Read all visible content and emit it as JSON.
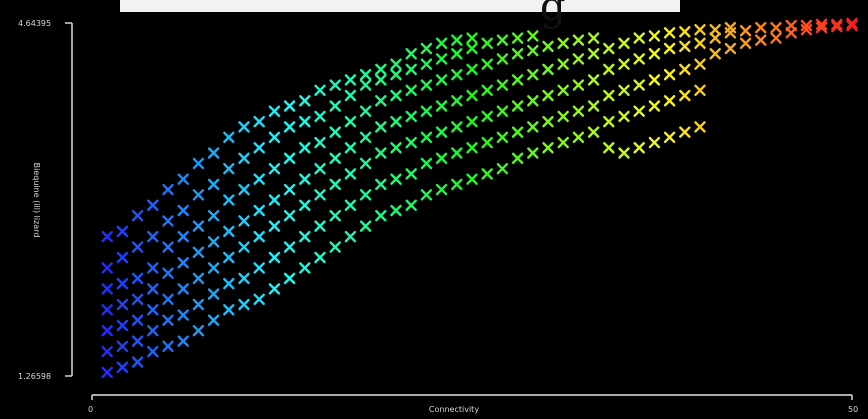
{
  "chart_data": {
    "type": "scatter",
    "title": "",
    "xlabel": "Connectivity",
    "ylabel": "Biequine (ill) lizard",
    "x_ticks": [
      "0",
      "50"
    ],
    "y_ticks": [
      "4.64395",
      "1.26598"
    ],
    "xlim": [
      0,
      50
    ],
    "ylim": [
      1.26598,
      4.64395
    ],
    "marker": "x",
    "grid": false,
    "legend": "none",
    "color_scale": "rainbow by connectivity (blue → cyan → green → yellow → red)",
    "points": [
      [
        1,
        1.3
      ],
      [
        1,
        1.5
      ],
      [
        1,
        1.7
      ],
      [
        1,
        1.9
      ],
      [
        1,
        2.1
      ],
      [
        1,
        2.3
      ],
      [
        1,
        2.6
      ],
      [
        2,
        1.35
      ],
      [
        2,
        1.55
      ],
      [
        2,
        1.75
      ],
      [
        2,
        1.95
      ],
      [
        2,
        2.15
      ],
      [
        2,
        2.4
      ],
      [
        2,
        2.65
      ],
      [
        3,
        1.4
      ],
      [
        3,
        1.6
      ],
      [
        3,
        1.8
      ],
      [
        3,
        2.0
      ],
      [
        3,
        2.2
      ],
      [
        3,
        2.5
      ],
      [
        3,
        2.8
      ],
      [
        4,
        1.5
      ],
      [
        4,
        1.7
      ],
      [
        4,
        1.9
      ],
      [
        4,
        2.1
      ],
      [
        4,
        2.3
      ],
      [
        4,
        2.6
      ],
      [
        4,
        2.9
      ],
      [
        5,
        1.55
      ],
      [
        5,
        1.8
      ],
      [
        5,
        2.0
      ],
      [
        5,
        2.25
      ],
      [
        5,
        2.5
      ],
      [
        5,
        2.75
      ],
      [
        5,
        3.05
      ],
      [
        6,
        1.6
      ],
      [
        6,
        1.85
      ],
      [
        6,
        2.1
      ],
      [
        6,
        2.35
      ],
      [
        6,
        2.6
      ],
      [
        6,
        2.85
      ],
      [
        6,
        3.15
      ],
      [
        7,
        1.7
      ],
      [
        7,
        1.95
      ],
      [
        7,
        2.2
      ],
      [
        7,
        2.45
      ],
      [
        7,
        2.7
      ],
      [
        7,
        3.0
      ],
      [
        7,
        3.3
      ],
      [
        8,
        1.8
      ],
      [
        8,
        2.05
      ],
      [
        8,
        2.3
      ],
      [
        8,
        2.55
      ],
      [
        8,
        2.8
      ],
      [
        8,
        3.1
      ],
      [
        8,
        3.4
      ],
      [
        9,
        1.9
      ],
      [
        9,
        2.15
      ],
      [
        9,
        2.4
      ],
      [
        9,
        2.65
      ],
      [
        9,
        2.95
      ],
      [
        9,
        3.25
      ],
      [
        9,
        3.55
      ],
      [
        10,
        1.95
      ],
      [
        10,
        2.2
      ],
      [
        10,
        2.5
      ],
      [
        10,
        2.75
      ],
      [
        10,
        3.05
      ],
      [
        10,
        3.35
      ],
      [
        10,
        3.65
      ],
      [
        11,
        2.0
      ],
      [
        11,
        2.3
      ],
      [
        11,
        2.6
      ],
      [
        11,
        2.85
      ],
      [
        11,
        3.15
      ],
      [
        11,
        3.45
      ],
      [
        11,
        3.7
      ],
      [
        12,
        2.1
      ],
      [
        12,
        2.4
      ],
      [
        12,
        2.7
      ],
      [
        12,
        2.95
      ],
      [
        12,
        3.25
      ],
      [
        12,
        3.55
      ],
      [
        12,
        3.8
      ],
      [
        13,
        2.2
      ],
      [
        13,
        2.5
      ],
      [
        13,
        2.8
      ],
      [
        13,
        3.05
      ],
      [
        13,
        3.35
      ],
      [
        13,
        3.65
      ],
      [
        13,
        3.85
      ],
      [
        14,
        2.3
      ],
      [
        14,
        2.6
      ],
      [
        14,
        2.9
      ],
      [
        14,
        3.15
      ],
      [
        14,
        3.45
      ],
      [
        14,
        3.7
      ],
      [
        14,
        3.9
      ],
      [
        15,
        2.4
      ],
      [
        15,
        2.7
      ],
      [
        15,
        3.0
      ],
      [
        15,
        3.25
      ],
      [
        15,
        3.5
      ],
      [
        15,
        3.75
      ],
      [
        15,
        4.0
      ],
      [
        16,
        2.5
      ],
      [
        16,
        2.8
      ],
      [
        16,
        3.1
      ],
      [
        16,
        3.35
      ],
      [
        16,
        3.6
      ],
      [
        16,
        3.85
      ],
      [
        16,
        4.05
      ],
      [
        17,
        2.6
      ],
      [
        17,
        2.9
      ],
      [
        17,
        3.2
      ],
      [
        17,
        3.45
      ],
      [
        17,
        3.7
      ],
      [
        17,
        3.95
      ],
      [
        17,
        4.1
      ],
      [
        18,
        2.7
      ],
      [
        18,
        3.0
      ],
      [
        18,
        3.3
      ],
      [
        18,
        3.55
      ],
      [
        18,
        3.8
      ],
      [
        18,
        4.05
      ],
      [
        18,
        4.15
      ],
      [
        19,
        2.8
      ],
      [
        19,
        3.1
      ],
      [
        19,
        3.4
      ],
      [
        19,
        3.65
      ],
      [
        19,
        3.9
      ],
      [
        19,
        4.1
      ],
      [
        19,
        4.2
      ],
      [
        20,
        2.85
      ],
      [
        20,
        3.15
      ],
      [
        20,
        3.45
      ],
      [
        20,
        3.7
      ],
      [
        20,
        3.95
      ],
      [
        20,
        4.15
      ],
      [
        20,
        4.25
      ],
      [
        21,
        2.9
      ],
      [
        21,
        3.2
      ],
      [
        21,
        3.5
      ],
      [
        21,
        3.75
      ],
      [
        21,
        4.0
      ],
      [
        21,
        4.2
      ],
      [
        21,
        4.35
      ],
      [
        22,
        3.0
      ],
      [
        22,
        3.3
      ],
      [
        22,
        3.55
      ],
      [
        22,
        3.8
      ],
      [
        22,
        4.05
      ],
      [
        22,
        4.25
      ],
      [
        22,
        4.4
      ],
      [
        23,
        3.05
      ],
      [
        23,
        3.35
      ],
      [
        23,
        3.6
      ],
      [
        23,
        3.85
      ],
      [
        23,
        4.1
      ],
      [
        23,
        4.3
      ],
      [
        23,
        4.45
      ],
      [
        24,
        3.1
      ],
      [
        24,
        3.4
      ],
      [
        24,
        3.65
      ],
      [
        24,
        3.9
      ],
      [
        24,
        4.15
      ],
      [
        24,
        4.35
      ],
      [
        24,
        4.48
      ],
      [
        25,
        3.15
      ],
      [
        25,
        3.45
      ],
      [
        25,
        3.7
      ],
      [
        25,
        3.95
      ],
      [
        25,
        4.2
      ],
      [
        25,
        4.4
      ],
      [
        25,
        4.5
      ],
      [
        26,
        3.2
      ],
      [
        26,
        3.5
      ],
      [
        26,
        3.75
      ],
      [
        26,
        4.0
      ],
      [
        26,
        4.25
      ],
      [
        26,
        4.45
      ],
      [
        27,
        3.25
      ],
      [
        27,
        3.55
      ],
      [
        27,
        3.8
      ],
      [
        27,
        4.05
      ],
      [
        27,
        4.3
      ],
      [
        27,
        4.48
      ],
      [
        28,
        3.35
      ],
      [
        28,
        3.6
      ],
      [
        28,
        3.85
      ],
      [
        28,
        4.1
      ],
      [
        28,
        4.35
      ],
      [
        28,
        4.5
      ],
      [
        29,
        3.4
      ],
      [
        29,
        3.65
      ],
      [
        29,
        3.9
      ],
      [
        29,
        4.15
      ],
      [
        29,
        4.38
      ],
      [
        29,
        4.52
      ],
      [
        30,
        3.45
      ],
      [
        30,
        3.7
      ],
      [
        30,
        3.95
      ],
      [
        30,
        4.2
      ],
      [
        30,
        4.42
      ],
      [
        31,
        3.5
      ],
      [
        31,
        3.75
      ],
      [
        31,
        4.0
      ],
      [
        31,
        4.25
      ],
      [
        31,
        4.45
      ],
      [
        32,
        3.55
      ],
      [
        32,
        3.8
      ],
      [
        32,
        4.05
      ],
      [
        32,
        4.3
      ],
      [
        32,
        4.48
      ],
      [
        33,
        3.6
      ],
      [
        33,
        3.85
      ],
      [
        33,
        4.1
      ],
      [
        33,
        4.35
      ],
      [
        33,
        4.5
      ],
      [
        34,
        3.45
      ],
      [
        34,
        3.7
      ],
      [
        34,
        3.95
      ],
      [
        34,
        4.2
      ],
      [
        34,
        4.4
      ],
      [
        35,
        3.4
      ],
      [
        35,
        3.75
      ],
      [
        35,
        4.0
      ],
      [
        35,
        4.25
      ],
      [
        35,
        4.45
      ],
      [
        36,
        3.45
      ],
      [
        36,
        3.8
      ],
      [
        36,
        4.05
      ],
      [
        36,
        4.3
      ],
      [
        36,
        4.5
      ],
      [
        37,
        3.5
      ],
      [
        37,
        3.85
      ],
      [
        37,
        4.1
      ],
      [
        37,
        4.35
      ],
      [
        37,
        4.52
      ],
      [
        38,
        3.55
      ],
      [
        38,
        3.9
      ],
      [
        38,
        4.15
      ],
      [
        38,
        4.4
      ],
      [
        38,
        4.55
      ],
      [
        39,
        3.6
      ],
      [
        39,
        3.95
      ],
      [
        39,
        4.2
      ],
      [
        39,
        4.42
      ],
      [
        39,
        4.56
      ],
      [
        40,
        3.65
      ],
      [
        40,
        4.0
      ],
      [
        40,
        4.25
      ],
      [
        40,
        4.45
      ],
      [
        40,
        4.58
      ],
      [
        41,
        4.35
      ],
      [
        41,
        4.5
      ],
      [
        41,
        4.58
      ],
      [
        42,
        4.4
      ],
      [
        42,
        4.55
      ],
      [
        42,
        4.6
      ],
      [
        43,
        4.45
      ],
      [
        43,
        4.57
      ],
      [
        44,
        4.48
      ],
      [
        44,
        4.6
      ],
      [
        45,
        4.5
      ],
      [
        45,
        4.6
      ],
      [
        46,
        4.55
      ],
      [
        46,
        4.62
      ],
      [
        47,
        4.58
      ],
      [
        47,
        4.62
      ],
      [
        48,
        4.6
      ],
      [
        48,
        4.63
      ],
      [
        49,
        4.61
      ],
      [
        49,
        4.63
      ],
      [
        50,
        4.62
      ],
      [
        50,
        4.64
      ]
    ]
  }
}
